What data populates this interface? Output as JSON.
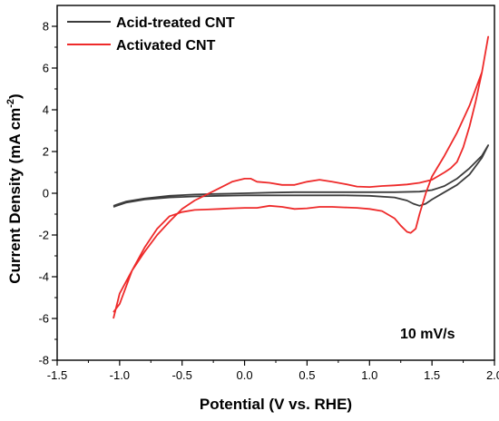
{
  "chart_data": {
    "type": "line",
    "xlabel": "Potential (V vs. RHE)",
    "ylabel": "Current Density (mA cm",
    "ylabel_sup": "-2",
    "ylabel_close": ")",
    "xlim": [
      -1.5,
      2.0
    ],
    "ylim": [
      -8,
      9
    ],
    "xticks": [
      -1.5,
      -1.0,
      -0.5,
      0.0,
      0.5,
      1.0,
      1.5,
      2.0
    ],
    "xtick_labels": [
      "-1.5",
      "-1.0",
      "-0.5",
      "0.0",
      "0.5",
      "1.0",
      "1.5",
      "2.0"
    ],
    "yticks": [
      -8,
      -6,
      -4,
      -2,
      0,
      2,
      4,
      6,
      8
    ],
    "ytick_labels": [
      "-8",
      "-6",
      "-4",
      "-2",
      "0",
      "2",
      "4",
      "6",
      "8"
    ],
    "grid": false,
    "legend_position": "top-left",
    "annotation": "10 mV/s",
    "series": [
      {
        "name": "Acid-treated CNT",
        "color": "#3c3c3c",
        "x": [
          -1.05,
          -0.95,
          -0.8,
          -0.6,
          -0.4,
          -0.2,
          0.0,
          0.2,
          0.4,
          0.6,
          0.8,
          1.0,
          1.2,
          1.3,
          1.35,
          1.4,
          1.45,
          1.5,
          1.6,
          1.7,
          1.8,
          1.9,
          1.95,
          1.95,
          1.9,
          1.8,
          1.7,
          1.6,
          1.55,
          1.5,
          1.4,
          1.2,
          1.0,
          0.8,
          0.6,
          0.4,
          0.2,
          0.0,
          -0.2,
          -0.4,
          -0.6,
          -0.8,
          -0.95,
          -1.05
        ],
        "y": [
          -0.65,
          -0.45,
          -0.3,
          -0.2,
          -0.15,
          -0.12,
          -0.1,
          -0.1,
          -0.1,
          -0.1,
          -0.1,
          -0.12,
          -0.2,
          -0.35,
          -0.5,
          -0.6,
          -0.5,
          -0.3,
          0.05,
          0.4,
          0.9,
          1.7,
          2.3,
          2.3,
          1.8,
          1.2,
          0.7,
          0.35,
          0.25,
          0.15,
          0.08,
          0.05,
          0.05,
          0.05,
          0.05,
          0.05,
          0.03,
          0.0,
          -0.03,
          -0.06,
          -0.12,
          -0.25,
          -0.4,
          -0.6
        ]
      },
      {
        "name": "Activated CNT",
        "color": "#ee2a2a",
        "x": [
          -1.05,
          -1.0,
          -0.9,
          -0.8,
          -0.7,
          -0.6,
          -0.5,
          -0.4,
          -0.3,
          -0.2,
          -0.1,
          0.0,
          0.1,
          0.2,
          0.3,
          0.4,
          0.5,
          0.6,
          0.7,
          0.8,
          0.9,
          1.0,
          1.1,
          1.2,
          1.25,
          1.3,
          1.33,
          1.37,
          1.4,
          1.45,
          1.5,
          1.6,
          1.7,
          1.8,
          1.9,
          1.95,
          1.95,
          1.9,
          1.85,
          1.8,
          1.75,
          1.7,
          1.65,
          1.6,
          1.5,
          1.4,
          1.3,
          1.2,
          1.1,
          1.0,
          0.9,
          0.8,
          0.7,
          0.6,
          0.5,
          0.4,
          0.3,
          0.2,
          0.1,
          0.05,
          0.0,
          -0.1,
          -0.2,
          -0.3,
          -0.4,
          -0.5,
          -0.6,
          -0.7,
          -0.8,
          -0.9,
          -1.0,
          -1.05
        ],
        "y": [
          -6.0,
          -4.8,
          -3.7,
          -2.6,
          -1.7,
          -1.1,
          -0.9,
          -0.8,
          -0.78,
          -0.75,
          -0.72,
          -0.7,
          -0.7,
          -0.6,
          -0.65,
          -0.75,
          -0.72,
          -0.65,
          -0.65,
          -0.68,
          -0.7,
          -0.75,
          -0.85,
          -1.2,
          -1.55,
          -1.85,
          -1.9,
          -1.7,
          -1.0,
          0.0,
          0.8,
          1.8,
          2.9,
          4.2,
          5.8,
          7.5,
          7.5,
          5.8,
          4.4,
          3.2,
          2.2,
          1.5,
          1.2,
          1.0,
          0.65,
          0.5,
          0.42,
          0.38,
          0.35,
          0.3,
          0.32,
          0.45,
          0.55,
          0.65,
          0.55,
          0.4,
          0.4,
          0.5,
          0.55,
          0.7,
          0.7,
          0.55,
          0.25,
          -0.05,
          -0.35,
          -0.75,
          -1.35,
          -2.0,
          -2.8,
          -3.7,
          -5.3,
          -5.7
        ]
      }
    ]
  }
}
